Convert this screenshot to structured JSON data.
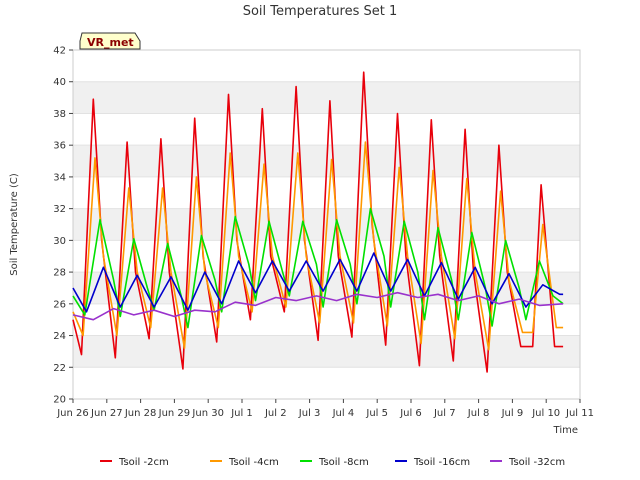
{
  "chart_data": {
    "type": "line",
    "title": "Soil Temperatures Set 1",
    "xlabel": "Time",
    "ylabel": "Soil Temperature (C)",
    "site_badge": "VR_met",
    "ylim": [
      20,
      42
    ],
    "yticks": [
      20,
      22,
      24,
      26,
      28,
      30,
      32,
      34,
      36,
      38,
      40,
      42
    ],
    "xlim": [
      0,
      15
    ],
    "x_unit": "days since Jun 26",
    "xtick_labels": [
      "Jun 26",
      "Jun 27",
      "Jun 28",
      "Jun 29",
      "Jun 30",
      "Jul 1",
      "Jul 2",
      "Jul 3",
      "Jul 4",
      "Jul 5",
      "Jul 6",
      "Jul 7",
      "Jul 8",
      "Jul 9",
      "Jul 10",
      "Jul 11"
    ],
    "grid": "horizontal bands",
    "legend_position": "bottom",
    "series": [
      {
        "name": "Tsoil -2cm",
        "color": "#e8000b",
        "x": [
          0.0,
          0.25,
          0.6,
          0.85,
          1.25,
          1.6,
          1.85,
          2.25,
          2.6,
          2.85,
          3.25,
          3.6,
          3.85,
          4.25,
          4.6,
          4.85,
          5.25,
          5.6,
          5.85,
          6.25,
          6.6,
          6.85,
          7.25,
          7.6,
          7.85,
          8.25,
          8.6,
          8.85,
          9.25,
          9.6,
          9.85,
          10.25,
          10.6,
          10.85,
          11.25,
          11.6,
          11.85,
          12.25,
          12.6,
          12.85,
          13.25,
          13.6,
          13.85,
          14.25,
          14.5
        ],
        "values": [
          25.0,
          22.8,
          38.9,
          30.0,
          22.6,
          36.2,
          28.0,
          23.8,
          36.4,
          28.0,
          21.9,
          37.7,
          29.0,
          23.6,
          39.2,
          30.0,
          25.0,
          38.3,
          29.0,
          25.5,
          39.7,
          30.0,
          23.7,
          38.8,
          29.0,
          23.9,
          40.6,
          31.0,
          23.4,
          38.0,
          29.0,
          22.1,
          37.6,
          29.0,
          22.4,
          37.0,
          28.0,
          21.7,
          36.0,
          28.0,
          23.3,
          23.3,
          33.5,
          23.3,
          23.3
        ]
      },
      {
        "name": "Tsoil -4cm",
        "color": "#ff9900",
        "x": [
          0.0,
          0.3,
          0.65,
          0.9,
          1.3,
          1.65,
          1.9,
          2.3,
          2.65,
          2.9,
          3.3,
          3.65,
          3.9,
          4.3,
          4.65,
          4.9,
          5.3,
          5.65,
          5.9,
          6.3,
          6.65,
          6.9,
          7.3,
          7.65,
          7.9,
          8.3,
          8.65,
          8.9,
          9.3,
          9.65,
          9.9,
          10.3,
          10.65,
          10.9,
          11.3,
          11.65,
          11.9,
          12.3,
          12.65,
          12.9,
          13.3,
          13.6,
          13.9,
          14.3,
          14.5
        ],
        "values": [
          25.5,
          24.0,
          35.2,
          29.0,
          24.0,
          33.3,
          28.0,
          24.5,
          33.3,
          28.0,
          23.2,
          34.0,
          28.0,
          24.5,
          35.5,
          29.0,
          25.5,
          34.8,
          29.0,
          25.8,
          35.5,
          29.0,
          24.8,
          35.1,
          29.0,
          24.8,
          36.2,
          30.0,
          24.6,
          34.6,
          29.0,
          23.5,
          34.4,
          29.0,
          23.8,
          33.9,
          28.0,
          23.1,
          33.1,
          27.5,
          24.2,
          24.2,
          31.0,
          24.5,
          24.5
        ]
      },
      {
        "name": "Tsoil -8cm",
        "color": "#00e000",
        "x": [
          0.0,
          0.35,
          0.8,
          1.2,
          1.4,
          1.8,
          2.2,
          2.4,
          2.8,
          3.2,
          3.4,
          3.8,
          4.2,
          4.4,
          4.8,
          5.2,
          5.4,
          5.8,
          6.2,
          6.4,
          6.8,
          7.2,
          7.4,
          7.8,
          8.2,
          8.4,
          8.8,
          9.2,
          9.4,
          9.8,
          10.2,
          10.4,
          10.8,
          11.2,
          11.4,
          11.8,
          12.2,
          12.4,
          12.8,
          13.2,
          13.4,
          13.8,
          14.2,
          14.5
        ],
        "values": [
          26.5,
          25.3,
          31.3,
          27.5,
          25.2,
          30.1,
          27.0,
          25.6,
          29.8,
          26.5,
          24.5,
          30.3,
          27.5,
          25.5,
          31.5,
          28.5,
          26.2,
          31.2,
          28.0,
          26.5,
          31.2,
          28.5,
          25.8,
          31.3,
          28.5,
          26.0,
          32.0,
          29.0,
          25.8,
          31.2,
          28.0,
          25.0,
          30.8,
          27.5,
          25.0,
          30.5,
          27.0,
          24.6,
          30.0,
          27.0,
          25.0,
          28.7,
          26.5,
          26.0
        ]
      },
      {
        "name": "Tsoil -16cm",
        "color": "#0000cc",
        "x": [
          0.0,
          0.4,
          0.9,
          1.4,
          1.9,
          2.4,
          2.9,
          3.4,
          3.9,
          4.4,
          4.9,
          5.4,
          5.9,
          6.4,
          6.9,
          7.4,
          7.9,
          8.4,
          8.9,
          9.4,
          9.9,
          10.4,
          10.9,
          11.4,
          11.9,
          12.4,
          12.9,
          13.4,
          13.9,
          14.4,
          14.5
        ],
        "values": [
          27.0,
          25.5,
          28.3,
          25.8,
          27.8,
          25.8,
          27.7,
          25.6,
          28.0,
          26.0,
          28.7,
          26.7,
          28.7,
          26.8,
          28.7,
          26.8,
          28.8,
          26.8,
          29.2,
          26.8,
          28.8,
          26.5,
          28.6,
          26.3,
          28.3,
          26.0,
          27.9,
          25.8,
          27.2,
          26.6,
          26.6
        ]
      },
      {
        "name": "Tsoil -32cm",
        "color": "#9932cc",
        "x": [
          0.0,
          0.6,
          1.2,
          1.8,
          2.4,
          3.0,
          3.6,
          4.2,
          4.8,
          5.4,
          6.0,
          6.6,
          7.2,
          7.8,
          8.4,
          9.0,
          9.6,
          10.2,
          10.8,
          11.4,
          12.0,
          12.6,
          13.2,
          13.8,
          14.5
        ],
        "values": [
          25.3,
          25.0,
          25.7,
          25.3,
          25.6,
          25.2,
          25.6,
          25.5,
          26.1,
          25.9,
          26.4,
          26.2,
          26.5,
          26.2,
          26.6,
          26.4,
          26.7,
          26.4,
          26.6,
          26.2,
          26.5,
          26.0,
          26.3,
          25.9,
          26.0
        ]
      }
    ]
  }
}
